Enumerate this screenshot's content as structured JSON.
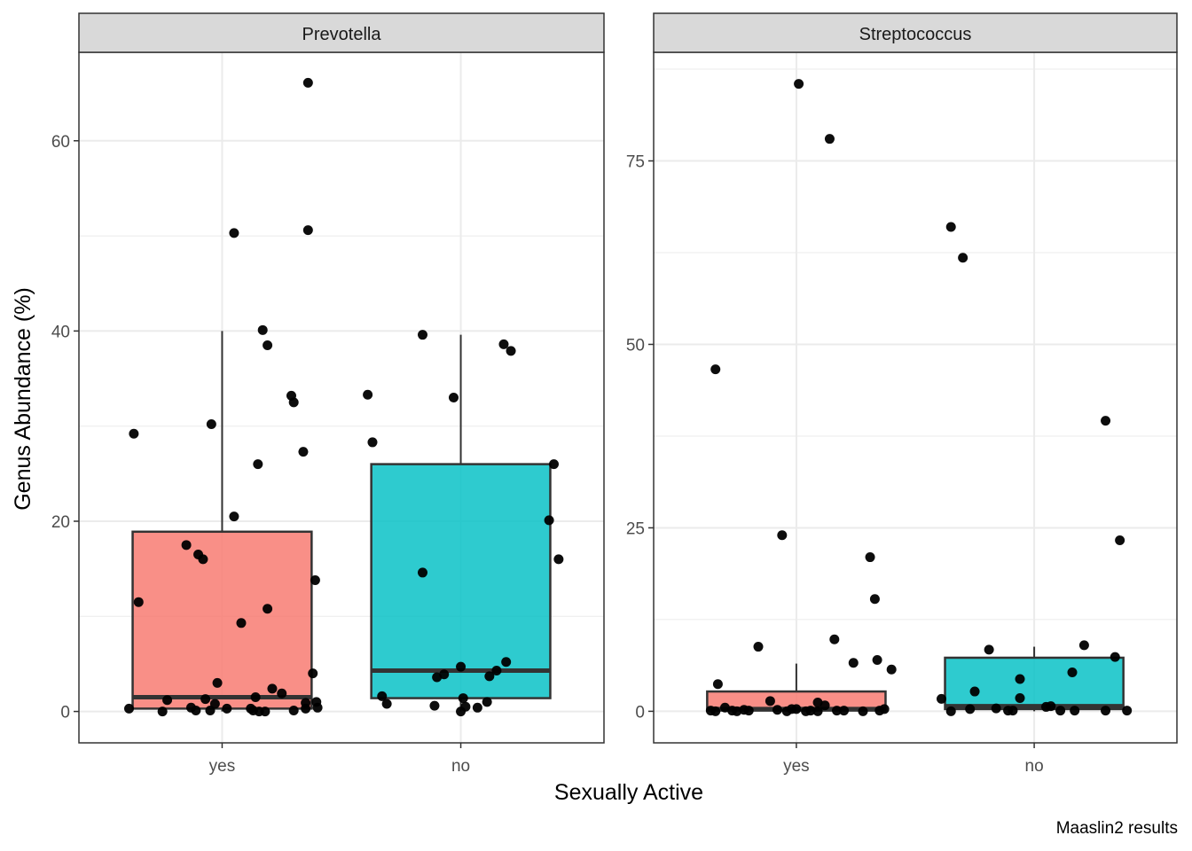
{
  "chart_data": {
    "type": "box",
    "ylabel": "Genus Abundance (%)",
    "xlabel": "Sexually Active",
    "caption": "Maaslin2 results",
    "categories": [
      "yes",
      "no"
    ],
    "fill_colors": {
      "yes": "#F8766D",
      "no": "#00BFC4"
    },
    "point_color": "#000000",
    "grid": true,
    "panels": [
      {
        "name": "Prevotella",
        "ylim": [
          -3.3,
          69.3
        ],
        "yticks": [
          0,
          20,
          40,
          60
        ],
        "boxes": [
          {
            "category": "yes",
            "whisker_low": 0,
            "q1": 0.3,
            "median": 1.5,
            "q3": 18.9,
            "whisker_high": 40.0
          },
          {
            "category": "no",
            "whisker_low": 0,
            "q1": 1.4,
            "median": 4.3,
            "q3": 26.0,
            "whisker_high": 39.6
          }
        ],
        "points": [
          {
            "category": "yes",
            "x": -0.39,
            "y": 0.3
          },
          {
            "category": "yes",
            "x": -0.37,
            "y": 29.2
          },
          {
            "category": "yes",
            "x": -0.35,
            "y": 11.5
          },
          {
            "category": "yes",
            "x": -0.25,
            "y": 0.0
          },
          {
            "category": "yes",
            "x": -0.23,
            "y": 1.2
          },
          {
            "category": "yes",
            "x": -0.15,
            "y": 17.5
          },
          {
            "category": "yes",
            "x": -0.13,
            "y": 0.4
          },
          {
            "category": "yes",
            "x": -0.11,
            "y": 0.1
          },
          {
            "category": "yes",
            "x": -0.1,
            "y": 16.5
          },
          {
            "category": "yes",
            "x": -0.08,
            "y": 16.0
          },
          {
            "category": "yes",
            "x": -0.07,
            "y": 1.3
          },
          {
            "category": "yes",
            "x": -0.05,
            "y": 0.1
          },
          {
            "category": "yes",
            "x": -0.045,
            "y": 30.2
          },
          {
            "category": "yes",
            "x": -0.03,
            "y": 0.8
          },
          {
            "category": "yes",
            "x": -0.02,
            "y": 3.0
          },
          {
            "category": "yes",
            "x": 0.02,
            "y": 0.3
          },
          {
            "category": "yes",
            "x": 0.05,
            "y": 50.3
          },
          {
            "category": "yes",
            "x": 0.05,
            "y": 20.5
          },
          {
            "category": "yes",
            "x": 0.08,
            "y": 9.3
          },
          {
            "category": "yes",
            "x": 0.12,
            "y": 0.3
          },
          {
            "category": "yes",
            "x": 0.13,
            "y": 0.1
          },
          {
            "category": "yes",
            "x": 0.14,
            "y": 1.5
          },
          {
            "category": "yes",
            "x": 0.15,
            "y": 26.0
          },
          {
            "category": "yes",
            "x": 0.155,
            "y": 0.0
          },
          {
            "category": "yes",
            "x": 0.17,
            "y": 40.1
          },
          {
            "category": "yes",
            "x": 0.18,
            "y": 0.0
          },
          {
            "category": "yes",
            "x": 0.19,
            "y": 38.5
          },
          {
            "category": "yes",
            "x": 0.19,
            "y": 10.8
          },
          {
            "category": "yes",
            "x": 0.21,
            "y": 2.4
          },
          {
            "category": "yes",
            "x": 0.25,
            "y": 1.9
          },
          {
            "category": "yes",
            "x": 0.29,
            "y": 33.2
          },
          {
            "category": "yes",
            "x": 0.3,
            "y": 32.5
          },
          {
            "category": "yes",
            "x": 0.3,
            "y": 0.1
          },
          {
            "category": "yes",
            "x": 0.34,
            "y": 27.3
          },
          {
            "category": "yes",
            "x": 0.35,
            "y": 0.9
          },
          {
            "category": "yes",
            "x": 0.35,
            "y": 0.3
          },
          {
            "category": "yes",
            "x": 0.36,
            "y": 50.6
          },
          {
            "category": "yes",
            "x": 0.36,
            "y": 66.1
          },
          {
            "category": "yes",
            "x": 0.38,
            "y": 4.0
          },
          {
            "category": "yes",
            "x": 0.39,
            "y": 13.8
          },
          {
            "category": "yes",
            "x": 0.395,
            "y": 1.0
          },
          {
            "category": "yes",
            "x": 0.4,
            "y": 0.4
          },
          {
            "category": "no",
            "x": -0.39,
            "y": 33.3
          },
          {
            "category": "no",
            "x": -0.37,
            "y": 28.3
          },
          {
            "category": "no",
            "x": -0.33,
            "y": 1.6
          },
          {
            "category": "no",
            "x": -0.31,
            "y": 0.8
          },
          {
            "category": "no",
            "x": -0.16,
            "y": 39.6
          },
          {
            "category": "no",
            "x": -0.16,
            "y": 14.6
          },
          {
            "category": "no",
            "x": -0.11,
            "y": 0.6
          },
          {
            "category": "no",
            "x": -0.1,
            "y": 3.6
          },
          {
            "category": "no",
            "x": -0.07,
            "y": 3.9
          },
          {
            "category": "no",
            "x": -0.03,
            "y": 33.0
          },
          {
            "category": "no",
            "x": 0.0,
            "y": 4.7
          },
          {
            "category": "no",
            "x": 0.0,
            "y": 0.0
          },
          {
            "category": "no",
            "x": 0.01,
            "y": 1.4
          },
          {
            "category": "no",
            "x": 0.02,
            "y": 0.5
          },
          {
            "category": "no",
            "x": 0.07,
            "y": 0.4
          },
          {
            "category": "no",
            "x": 0.11,
            "y": 1.0
          },
          {
            "category": "no",
            "x": 0.12,
            "y": 3.7
          },
          {
            "category": "no",
            "x": 0.15,
            "y": 4.3
          },
          {
            "category": "no",
            "x": 0.18,
            "y": 38.6
          },
          {
            "category": "no",
            "x": 0.19,
            "y": 5.2
          },
          {
            "category": "no",
            "x": 0.21,
            "y": 37.9
          },
          {
            "category": "no",
            "x": 0.37,
            "y": 20.1
          },
          {
            "category": "no",
            "x": 0.39,
            "y": 26.0
          },
          {
            "category": "no",
            "x": 0.41,
            "y": 16.0
          }
        ]
      },
      {
        "name": "Streptococcus",
        "ylim": [
          -4.3,
          89.8
        ],
        "yticks": [
          0,
          25,
          50,
          75
        ],
        "boxes": [
          {
            "category": "yes",
            "whisker_low": 0,
            "q1": 0.1,
            "median": 0.3,
            "q3": 2.7,
            "whisker_high": 6.5
          },
          {
            "category": "no",
            "whisker_low": 0,
            "q1": 0.3,
            "median": 0.7,
            "q3": 7.3,
            "whisker_high": 8.8
          }
        ],
        "points": [
          {
            "category": "yes",
            "x": -0.36,
            "y": 0.1
          },
          {
            "category": "yes",
            "x": -0.34,
            "y": 0.0
          },
          {
            "category": "yes",
            "x": -0.34,
            "y": 46.6
          },
          {
            "category": "yes",
            "x": -0.33,
            "y": 3.7
          },
          {
            "category": "yes",
            "x": -0.3,
            "y": 0.5
          },
          {
            "category": "yes",
            "x": -0.27,
            "y": 0.1
          },
          {
            "category": "yes",
            "x": -0.25,
            "y": 0.0
          },
          {
            "category": "yes",
            "x": -0.22,
            "y": 0.2
          },
          {
            "category": "yes",
            "x": -0.2,
            "y": 0.1
          },
          {
            "category": "yes",
            "x": -0.16,
            "y": 8.8
          },
          {
            "category": "yes",
            "x": -0.11,
            "y": 1.4
          },
          {
            "category": "yes",
            "x": -0.08,
            "y": 0.2
          },
          {
            "category": "yes",
            "x": -0.06,
            "y": 24.0
          },
          {
            "category": "yes",
            "x": -0.04,
            "y": 0.0
          },
          {
            "category": "yes",
            "x": -0.02,
            "y": 0.3
          },
          {
            "category": "yes",
            "x": 0.0,
            "y": 0.3
          },
          {
            "category": "yes",
            "x": 0.01,
            "y": 85.5
          },
          {
            "category": "yes",
            "x": 0.04,
            "y": 0.0
          },
          {
            "category": "yes",
            "x": 0.06,
            "y": 0.1
          },
          {
            "category": "yes",
            "x": 0.09,
            "y": 0.0
          },
          {
            "category": "yes",
            "x": 0.09,
            "y": 1.2
          },
          {
            "category": "yes",
            "x": 0.12,
            "y": 0.8
          },
          {
            "category": "yes",
            "x": 0.14,
            "y": 78.0
          },
          {
            "category": "yes",
            "x": 0.16,
            "y": 9.8
          },
          {
            "category": "yes",
            "x": 0.17,
            "y": 0.1
          },
          {
            "category": "yes",
            "x": 0.2,
            "y": 0.1
          },
          {
            "category": "yes",
            "x": 0.24,
            "y": 6.6
          },
          {
            "category": "yes",
            "x": 0.28,
            "y": 0.0
          },
          {
            "category": "yes",
            "x": 0.31,
            "y": 21.0
          },
          {
            "category": "yes",
            "x": 0.33,
            "y": 15.3
          },
          {
            "category": "yes",
            "x": 0.34,
            "y": 7.0
          },
          {
            "category": "yes",
            "x": 0.35,
            "y": 0.1
          },
          {
            "category": "yes",
            "x": 0.37,
            "y": 0.3
          },
          {
            "category": "yes",
            "x": 0.4,
            "y": 5.7
          },
          {
            "category": "no",
            "x": -0.39,
            "y": 1.7
          },
          {
            "category": "no",
            "x": -0.35,
            "y": 0.0
          },
          {
            "category": "no",
            "x": -0.35,
            "y": 66.0
          },
          {
            "category": "no",
            "x": -0.3,
            "y": 61.8
          },
          {
            "category": "no",
            "x": -0.27,
            "y": 0.3
          },
          {
            "category": "no",
            "x": -0.25,
            "y": 2.7
          },
          {
            "category": "no",
            "x": -0.19,
            "y": 8.4
          },
          {
            "category": "no",
            "x": -0.16,
            "y": 0.4
          },
          {
            "category": "no",
            "x": -0.11,
            "y": 0.1
          },
          {
            "category": "no",
            "x": -0.09,
            "y": 0.1
          },
          {
            "category": "no",
            "x": -0.06,
            "y": 1.8
          },
          {
            "category": "no",
            "x": -0.06,
            "y": 4.4
          },
          {
            "category": "no",
            "x": 0.05,
            "y": 0.6
          },
          {
            "category": "no",
            "x": 0.07,
            "y": 0.7
          },
          {
            "category": "no",
            "x": 0.11,
            "y": 0.1
          },
          {
            "category": "no",
            "x": 0.16,
            "y": 5.3
          },
          {
            "category": "no",
            "x": 0.17,
            "y": 0.1
          },
          {
            "category": "no",
            "x": 0.21,
            "y": 9.0
          },
          {
            "category": "no",
            "x": 0.3,
            "y": 39.6
          },
          {
            "category": "no",
            "x": 0.3,
            "y": 0.1
          },
          {
            "category": "no",
            "x": 0.34,
            "y": 7.4
          },
          {
            "category": "no",
            "x": 0.36,
            "y": 23.3
          },
          {
            "category": "no",
            "x": 0.39,
            "y": 0.1
          }
        ]
      }
    ]
  }
}
